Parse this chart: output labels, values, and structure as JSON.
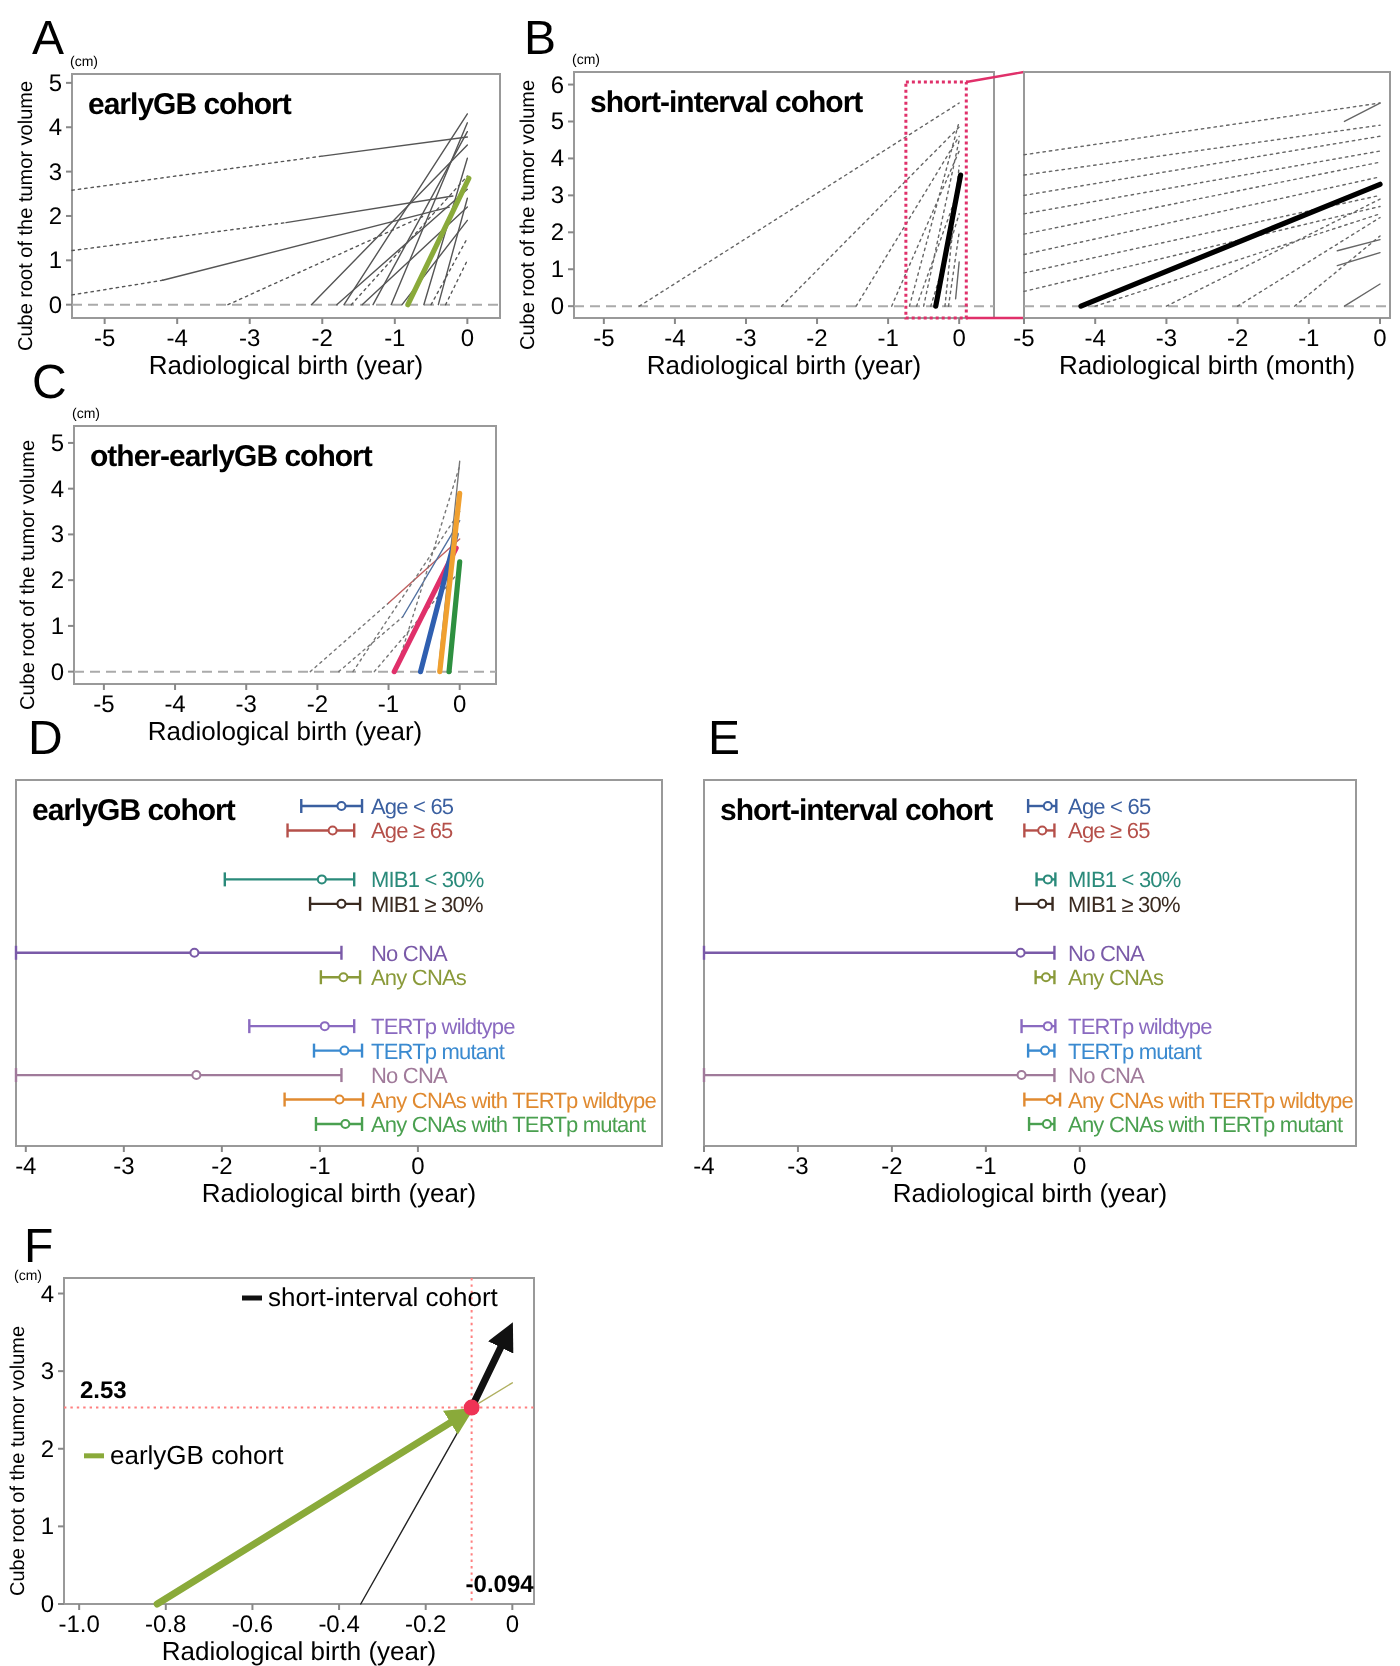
{
  "chart_data": [
    {
      "type": "line",
      "annotations": [
        "A",
        "(cm)"
      ],
      "title": "earlyGB cohort",
      "xlabel": "Radiological birth (year)",
      "ylabel": "Cube root of the tumor volume",
      "xlim": [
        -5.45,
        0.45
      ],
      "ylim": [
        -0.3,
        5.2
      ],
      "xticks": [
        -5,
        -4,
        -3,
        -2,
        -1,
        0
      ],
      "yticks": [
        0,
        1,
        2,
        3,
        4,
        5
      ],
      "color": "#555555",
      "ref_lines": [
        {
          "axis": "y",
          "value": 0,
          "line_style": "dashed",
          "color": "#aaaaaa"
        }
      ],
      "series": [
        {
          "line_style": "dotted",
          "x": [
            -5.45,
            -2.0
          ],
          "values": [
            2.58,
            3.35
          ]
        },
        {
          "line_style": "solid",
          "x": [
            -2.0,
            0
          ],
          "values": [
            3.35,
            3.78
          ]
        },
        {
          "line_style": "dotted",
          "x": [
            -5.45,
            -2.5
          ],
          "values": [
            1.22,
            1.85
          ]
        },
        {
          "line_style": "solid",
          "x": [
            -2.5,
            -0.2
          ],
          "values": [
            1.85,
            2.45
          ]
        },
        {
          "line_style": "dotted",
          "x": [
            -5.45,
            -4.2
          ],
          "values": [
            0.22,
            0.55
          ]
        },
        {
          "line_style": "solid",
          "x": [
            -4.2,
            -0.25
          ],
          "values": [
            0.55,
            2.2
          ]
        },
        {
          "line_style": "dotted",
          "x": [
            -3.3,
            -0.6
          ],
          "values": [
            0,
            2.0
          ]
        },
        {
          "line_style": "solid",
          "x": [
            -2.15,
            0
          ],
          "values": [
            0,
            3.6
          ]
        },
        {
          "line_style": "solid",
          "x": [
            -1.8,
            0
          ],
          "values": [
            0,
            2.6
          ]
        },
        {
          "line_style": "solid",
          "x": [
            -1.7,
            0
          ],
          "values": [
            0,
            4.3
          ]
        },
        {
          "line_style": "solid",
          "x": [
            -1.45,
            0
          ],
          "values": [
            0,
            2.2
          ]
        },
        {
          "line_style": "solid",
          "x": [
            -1.3,
            0
          ],
          "values": [
            0,
            3.9
          ]
        },
        {
          "line_style": "solid",
          "x": [
            -1.05,
            0
          ],
          "values": [
            0,
            4.1
          ]
        },
        {
          "line_style": "solid",
          "x": [
            -0.9,
            0
          ],
          "values": [
            0,
            1.9
          ]
        },
        {
          "line_style": "solid",
          "x": [
            -0.6,
            0
          ],
          "values": [
            0,
            3.3
          ]
        },
        {
          "line_style": "solid",
          "x": [
            -0.4,
            0
          ],
          "values": [
            0,
            2.4
          ]
        },
        {
          "line_style": "dotted",
          "x": [
            -0.5,
            0
          ],
          "values": [
            0,
            1.5
          ]
        },
        {
          "line_style": "dotted",
          "x": [
            -0.3,
            0
          ],
          "values": [
            0,
            1.0
          ]
        },
        {
          "line_style": "dotted",
          "x": [
            -1.6,
            0
          ],
          "values": [
            0,
            2.9
          ]
        },
        {
          "color": "#8aaa3a",
          "x": [
            -0.82,
            0.02
          ],
          "values": [
            0,
            2.85
          ]
        }
      ]
    },
    {
      "type": "line",
      "annotations": [
        "B",
        "(cm)"
      ],
      "title": "short-interval cohort",
      "xlabel": "Radiological birth (year)",
      "ylabel": "Cube root of the tumor volume",
      "xlim": [
        -5.42,
        0.49
      ],
      "ylim": [
        -0.32,
        6.34
      ],
      "xticks": [
        -5,
        -4,
        -3,
        -2,
        -1,
        0
      ],
      "yticks": [
        0,
        1,
        2,
        3,
        4,
        5,
        6
      ],
      "color": "#666666",
      "ref_lines": [
        {
          "axis": "y",
          "value": 0,
          "line_style": "dashed",
          "color": "#aaaaaa"
        }
      ],
      "series": [
        {
          "line_style": "dotted",
          "x": [
            -4.5,
            0
          ],
          "values": [
            0,
            5.5
          ]
        },
        {
          "line_style": "dotted",
          "x": [
            -2.5,
            0
          ],
          "values": [
            0,
            4.85
          ]
        },
        {
          "line_style": "dotted",
          "x": [
            -1.45,
            0
          ],
          "values": [
            0,
            4.6
          ]
        },
        {
          "line_style": "dotted",
          "x": [
            -0.95,
            0
          ],
          "values": [
            0,
            4.2
          ]
        },
        {
          "line_style": "dotted",
          "x": [
            -0.7,
            0
          ],
          "values": [
            0,
            5.0
          ]
        },
        {
          "line_style": "dotted",
          "x": [
            -0.6,
            0
          ],
          "values": [
            0,
            3.2
          ]
        },
        {
          "line_style": "dotted",
          "x": [
            -0.5,
            0
          ],
          "values": [
            0,
            4.5
          ]
        },
        {
          "line_style": "dotted",
          "x": [
            -0.4,
            0
          ],
          "values": [
            0,
            2.5
          ]
        },
        {
          "line_style": "dotted",
          "x": [
            -0.2,
            0
          ],
          "values": [
            0,
            3.8
          ]
        },
        {
          "line_style": "dotted",
          "x": [
            -0.15,
            0
          ],
          "values": [
            0,
            2.0
          ]
        },
        {
          "line_style": "solid",
          "x": [
            -0.05,
            0
          ],
          "values": [
            0.2,
            1.2
          ]
        },
        {
          "color": "#000000",
          "x": [
            -0.33,
            0.02
          ],
          "values": [
            0,
            3.55
          ]
        }
      ]
    },
    {
      "type": "line",
      "xlabel": "Radiological birth (month)",
      "xlim": [
        -5,
        0.14
      ],
      "ylim": [
        -0.32,
        6.34
      ],
      "xticks": [
        -5,
        -4,
        -3,
        -2,
        -1,
        0
      ],
      "tick_labels": "x",
      "color": "#666666",
      "ref_lines": [
        {
          "axis": "y",
          "value": 0,
          "line_style": "dashed",
          "color": "#aaaaaa"
        }
      ],
      "series": [
        {
          "line_style": "dotted",
          "x": [
            -5,
            0
          ],
          "values": [
            4.1,
            5.5
          ]
        },
        {
          "line_style": "dotted",
          "x": [
            -5,
            0
          ],
          "values": [
            3.55,
            4.9
          ]
        },
        {
          "line_style": "dotted",
          "x": [
            -5,
            0
          ],
          "values": [
            3.0,
            4.6
          ]
        },
        {
          "line_style": "dotted",
          "x": [
            -5,
            0
          ],
          "values": [
            2.5,
            4.2
          ]
        },
        {
          "line_style": "dotted",
          "x": [
            -5,
            0
          ],
          "values": [
            1.95,
            3.9
          ]
        },
        {
          "line_style": "dotted",
          "x": [
            -5,
            0
          ],
          "values": [
            1.4,
            3.5
          ]
        },
        {
          "line_style": "dotted",
          "x": [
            -5,
            0
          ],
          "values": [
            0.9,
            3.0
          ]
        },
        {
          "line_style": "dotted",
          "x": [
            -5,
            0
          ],
          "values": [
            0.4,
            2.7
          ]
        },
        {
          "line_style": "dotted",
          "x": [
            -4.0,
            0
          ],
          "values": [
            0,
            2.5
          ]
        },
        {
          "line_style": "dotted",
          "x": [
            -3.0,
            0
          ],
          "values": [
            0,
            2.9
          ]
        },
        {
          "line_style": "dotted",
          "x": [
            -2.0,
            0
          ],
          "values": [
            0,
            2.4
          ]
        },
        {
          "line_style": "dotted",
          "x": [
            -1.2,
            0
          ],
          "values": [
            0,
            1.9
          ]
        },
        {
          "line_style": "solid",
          "x": [
            -0.6,
            0
          ],
          "values": [
            1.5,
            1.8
          ]
        },
        {
          "line_style": "solid",
          "x": [
            -0.6,
            0
          ],
          "values": [
            1.1,
            1.45
          ]
        },
        {
          "line_style": "solid",
          "x": [
            -0.5,
            0
          ],
          "values": [
            0,
            0.6
          ]
        },
        {
          "line_style": "solid",
          "x": [
            -0.5,
            0
          ],
          "values": [
            5.0,
            5.5
          ]
        },
        {
          "color": "#000000",
          "x": [
            -4.2,
            0
          ],
          "values": [
            0,
            3.3
          ]
        }
      ]
    },
    {
      "type": "line",
      "annotations": [
        "C",
        "(cm)"
      ],
      "title": "other-earlyGB cohort",
      "xlabel": "Radiological birth (year)",
      "ylabel": "Cube root of the tumor volume",
      "xlim": [
        -5.42,
        0.51
      ],
      "ylim": [
        -0.27,
        5.37
      ],
      "xticks": [
        -5,
        -4,
        -3,
        -2,
        -1,
        0
      ],
      "yticks": [
        0,
        1,
        2,
        3,
        4,
        5
      ],
      "color": "#777777",
      "ref_lines": [
        {
          "axis": "y",
          "value": 0,
          "line_style": "dashed",
          "color": "#aaaaaa"
        }
      ],
      "series": [
        {
          "line_style": "dotted",
          "x": [
            -2.1,
            -1.0
          ],
          "values": [
            0,
            1.5
          ]
        },
        {
          "line_style": "solid",
          "color": "#c06060",
          "x": [
            -1.0,
            0
          ],
          "values": [
            1.5,
            2.9
          ]
        },
        {
          "line_style": "dotted",
          "x": [
            -1.7,
            -0.8
          ],
          "values": [
            0,
            1.2
          ]
        },
        {
          "line_style": "solid",
          "color": "#5070a0",
          "x": [
            -0.8,
            0
          ],
          "values": [
            1.2,
            3.3
          ]
        },
        {
          "line_style": "dotted",
          "x": [
            -1.5,
            0
          ],
          "values": [
            0,
            3.5
          ]
        },
        {
          "line_style": "dotted",
          "x": [
            -1.2,
            0
          ],
          "values": [
            0,
            2.2
          ]
        },
        {
          "line_style": "dotted",
          "x": [
            -0.9,
            0
          ],
          "values": [
            0,
            4.5
          ]
        },
        {
          "line_style": "solid",
          "x": [
            -0.3,
            0
          ],
          "values": [
            0,
            4.6
          ]
        },
        {
          "color": "#e0306a",
          "x": [
            -0.92,
            -0.05
          ],
          "values": [
            0,
            2.7
          ]
        },
        {
          "color": "#2f5fb0",
          "x": [
            -0.55,
            -0.05
          ],
          "values": [
            0,
            3.0
          ]
        },
        {
          "color": "#f0a030",
          "x": [
            -0.28,
            0
          ],
          "values": [
            0,
            3.9
          ]
        },
        {
          "color": "#2e9040",
          "x": [
            -0.15,
            0
          ],
          "values": [
            0,
            2.4
          ]
        }
      ]
    },
    {
      "type": "scatter",
      "orientation": "horizontal",
      "annotations": [
        "D"
      ],
      "title": "earlyGB cohort",
      "xlabel": "Radiological birth (year)",
      "xlim": [
        -4.1,
        2.49
      ],
      "xticks": [
        -4,
        -3,
        -2,
        -1,
        0
      ],
      "marker": "circle",
      "categories": [
        "Age < 65",
        "Age ≥ 65",
        null,
        "MIB1 < 30%",
        "MIB1 ≥ 30%",
        null,
        "No CNA",
        "Any CNAs",
        null,
        "TERTp wildtype",
        "TERTp mutant",
        "No CNA",
        "Any CNAs with TERTp wildtype",
        "Any CNAs with TERTp mutant"
      ],
      "values": [
        -0.78,
        -0.87,
        null,
        -0.98,
        -0.78,
        null,
        -2.28,
        -0.76,
        null,
        -0.95,
        -0.75,
        -2.26,
        -0.8,
        -0.74
      ],
      "errors": [
        [
          -1.19,
          -0.57
        ],
        [
          -1.33,
          -0.65
        ],
        null,
        [
          -1.97,
          -0.65
        ],
        [
          -1.1,
          -0.59
        ],
        null,
        [
          -4.1,
          -0.78
        ],
        [
          -0.99,
          -0.59
        ],
        null,
        [
          -1.72,
          -0.65
        ],
        [
          -1.06,
          -0.57
        ],
        [
          -4.1,
          -0.78
        ],
        [
          -1.36,
          -0.56
        ],
        [
          -1.04,
          -0.57
        ]
      ],
      "colors": [
        "#3a5fa0",
        "#b5504a",
        null,
        "#2a8a7a",
        "#3a2a20",
        null,
        "#7a5aa8",
        "#8a9a3a",
        null,
        "#8a6ac0",
        "#3a8ad0",
        "#a07a9a",
        "#e08a30",
        "#4aa050"
      ]
    },
    {
      "type": "scatter",
      "orientation": "horizontal",
      "annotations": [
        "E"
      ],
      "title": "short-interval cohort",
      "xlabel": "Radiological birth (year)",
      "xlim": [
        -4.0,
        2.94
      ],
      "xticks": [
        -4,
        -3,
        -2,
        -1,
        0
      ],
      "marker": "circle",
      "categories": [
        "Age < 65",
        "Age ≥ 65",
        null,
        "MIB1 < 30%",
        "MIB1 ≥ 30%",
        null,
        "No CNA",
        "Any CNAs",
        null,
        "TERTp wildtype",
        "TERTp mutant",
        "No CNA",
        "Any CNAs with TERTp wildtype",
        "Any CNAs with TERTp mutant"
      ],
      "values": [
        -0.34,
        -0.4,
        null,
        -0.34,
        -0.4,
        null,
        -0.63,
        -0.36,
        null,
        -0.34,
        -0.37,
        -0.62,
        -0.31,
        -0.35
      ],
      "errors": [
        [
          -0.55,
          -0.25
        ],
        [
          -0.59,
          -0.27
        ],
        null,
        [
          -0.46,
          -0.26
        ],
        [
          -0.67,
          -0.29
        ],
        null,
        [
          -4.0,
          -0.27
        ],
        [
          -0.47,
          -0.27
        ],
        null,
        [
          -0.62,
          -0.26
        ],
        [
          -0.55,
          -0.27
        ],
        [
          -4.0,
          -0.27
        ],
        [
          -0.59,
          -0.21
        ],
        [
          -0.54,
          -0.27
        ]
      ],
      "colors": [
        "#3a5fa0",
        "#b5504a",
        null,
        "#2a8a7a",
        "#3a2a20",
        null,
        "#7a5aa8",
        "#8a9a3a",
        null,
        "#8a6ac0",
        "#3a8ad0",
        "#a07a9a",
        "#e08a30",
        "#4aa050"
      ]
    },
    {
      "type": "line",
      "annotations": [
        "F",
        "(cm)"
      ],
      "xlabel": "Radiological birth (year)",
      "ylabel": "Cube root of the tumor volume",
      "xlim": [
        -1.035,
        0.05
      ],
      "ylim": [
        0,
        4.2
      ],
      "xticks": [
        {
          "value": -1,
          "label": "-1.0"
        },
        -0.8,
        -0.6,
        -0.4,
        -0.2,
        0
      ],
      "yticks": [
        0,
        1,
        2,
        3,
        4
      ],
      "legend": "top right",
      "ref_lines": [
        {
          "axis": "y",
          "value": 2.53,
          "label": "2.53",
          "color": "#ff8080",
          "line_style": "dotted"
        },
        {
          "axis": "x",
          "value": -0.094,
          "label": "-0.094",
          "color": "#ff8080",
          "line_style": "dotted"
        }
      ],
      "series": [
        {
          "line_style": "solid",
          "color": "#b0b060",
          "x": [
            -0.094,
            0
          ],
          "values": [
            2.53,
            2.85
          ]
        },
        {
          "line_style": "solid",
          "color": "#222222",
          "x": [
            -0.35,
            -0.094
          ],
          "values": [
            0,
            2.53
          ]
        },
        {
          "name": "short-interval cohort",
          "color": "#111111",
          "x": [
            -0.094,
            -0.01
          ],
          "values": [
            2.53,
            3.5
          ]
        },
        {
          "name": "earlyGB cohort",
          "color": "#8aaa3a",
          "x": [
            -0.82,
            -0.11
          ],
          "values": [
            0,
            2.45
          ]
        },
        {
          "type": "scatter",
          "color": "#ee3355",
          "x": [
            -0.094
          ],
          "values": [
            2.53
          ]
        }
      ]
    }
  ]
}
